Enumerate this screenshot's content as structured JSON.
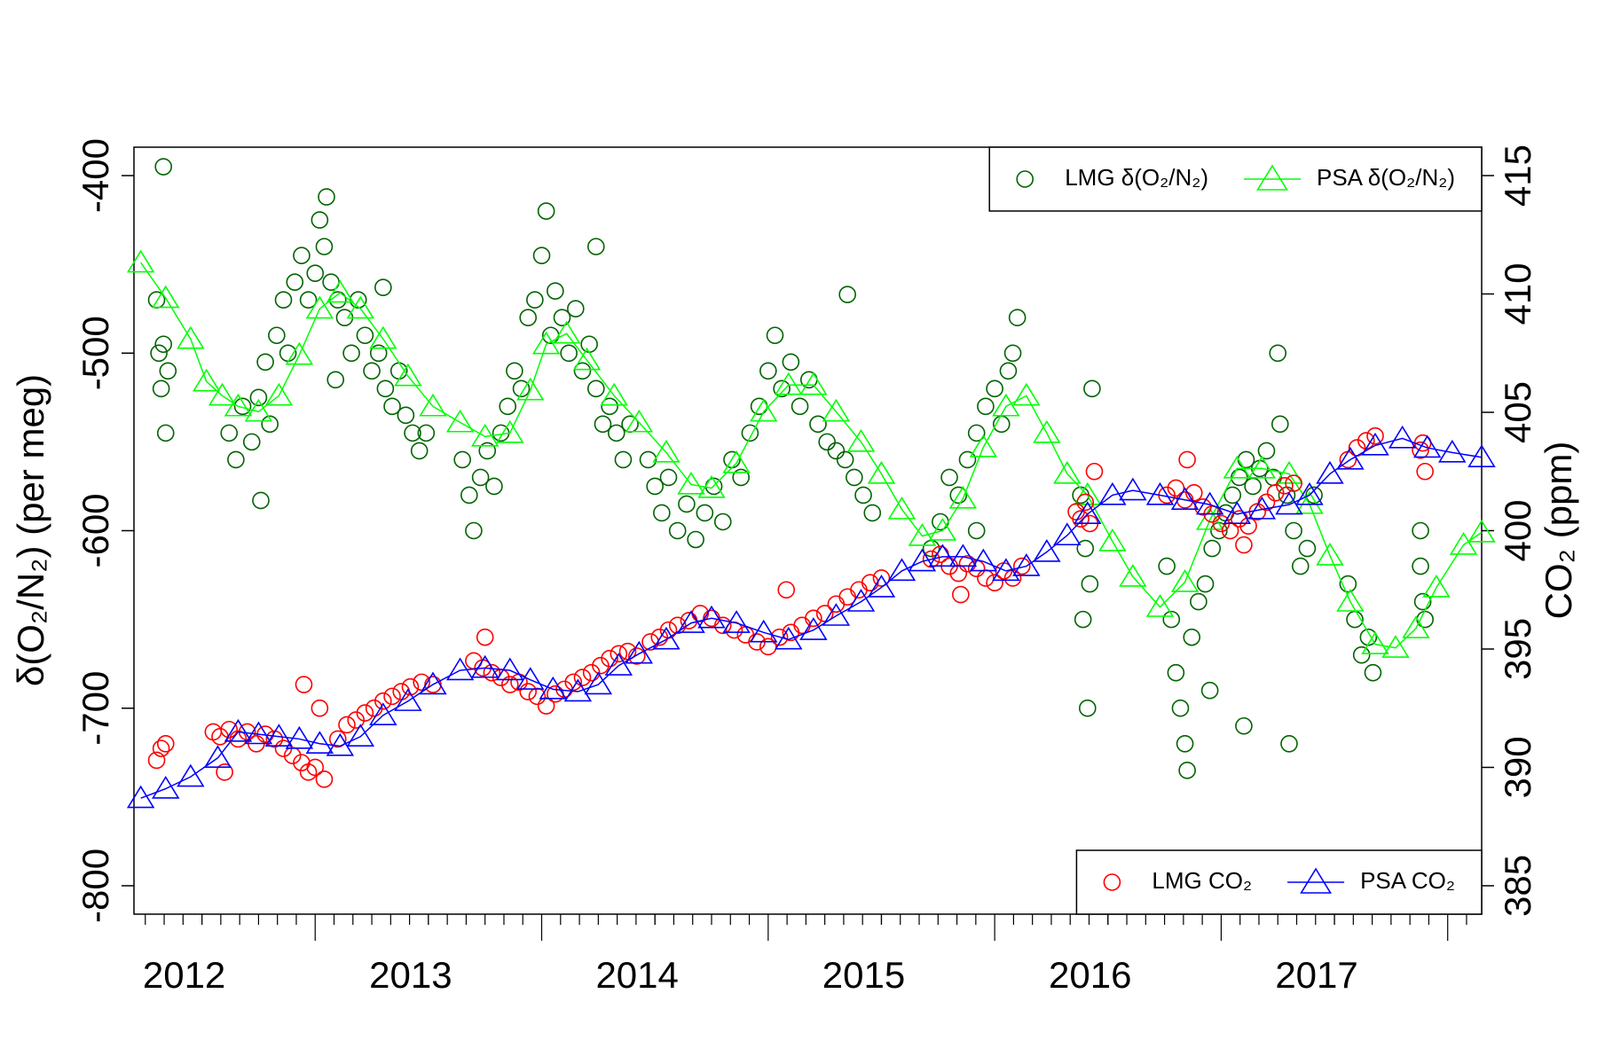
{
  "chart_data": {
    "type": "scatter",
    "y_label": "δ(O₂/N₂) (per meg)",
    "y2_label": "CO₂ (ppm)",
    "xlim": [
      2012.2,
      2018.15
    ],
    "xticks": [
      {
        "value": 2012.5,
        "label": "2012"
      },
      {
        "value": 2013.5,
        "label": "2013"
      },
      {
        "value": 2014.5,
        "label": "2014"
      },
      {
        "value": 2015.5,
        "label": "2015"
      },
      {
        "value": 2016.5,
        "label": "2016"
      },
      {
        "value": 2017.5,
        "label": "2017"
      }
    ],
    "ylim": [
      -816,
      -384
    ],
    "yticks": [
      -800,
      -700,
      -600,
      -500,
      -400
    ],
    "y2lim": [
      383.8,
      416.2
    ],
    "y2ticks": [
      385,
      390,
      395,
      400,
      405,
      410,
      415
    ],
    "series": [
      {
        "name": "LMG δ(O₂/N₂)",
        "color": "#006400",
        "marker": "circle",
        "line": false,
        "legend": "topright",
        "x": [
          2012.3,
          2012.31,
          2012.32,
          2012.33,
          2012.34,
          2012.35,
          2012.33,
          2012.62,
          2012.65,
          2012.68,
          2012.72,
          2012.75,
          2012.78,
          2012.8,
          2012.76,
          2012.83,
          2012.86,
          2012.88,
          2012.91,
          2012.94,
          2012.97,
          2013.0,
          2013.02,
          2013.04,
          2013.05,
          2013.07,
          2013.1,
          2013.09,
          2013.13,
          2013.16,
          2013.19,
          2013.22,
          2013.25,
          2013.28,
          2013.31,
          2013.34,
          2013.37,
          2013.4,
          2013.43,
          2013.46,
          2013.49,
          2013.3,
          2013.65,
          2013.68,
          2013.7,
          2013.73,
          2013.76,
          2013.79,
          2013.82,
          2013.85,
          2013.88,
          2013.91,
          2013.94,
          2013.97,
          2014.0,
          2014.02,
          2014.04,
          2014.06,
          2014.09,
          2014.12,
          2014.15,
          2014.18,
          2014.21,
          2014.24,
          2014.27,
          2014.3,
          2014.33,
          2014.36,
          2014.39,
          2014.24,
          2014.47,
          2014.5,
          2014.53,
          2014.56,
          2014.6,
          2014.64,
          2014.68,
          2014.72,
          2014.76,
          2014.8,
          2014.84,
          2014.88,
          2014.92,
          2014.96,
          2015.0,
          2015.03,
          2015.06,
          2015.1,
          2015.14,
          2015.18,
          2015.22,
          2015.26,
          2015.3,
          2015.34,
          2015.38,
          2015.42,
          2015.46,
          2015.35,
          2015.72,
          2015.76,
          2015.8,
          2015.84,
          2015.88,
          2015.92,
          2015.96,
          2016.0,
          2016.03,
          2016.06,
          2016.08,
          2016.1,
          2015.92,
          2016.38,
          2016.4,
          2016.42,
          2016.39,
          2016.41,
          2016.43,
          2016.76,
          2016.78,
          2016.8,
          2016.82,
          2016.84,
          2016.87,
          2016.9,
          2016.93,
          2016.96,
          2016.99,
          2017.02,
          2017.05,
          2017.08,
          2017.11,
          2017.14,
          2017.17,
          2017.2,
          2017.23,
          2017.26,
          2017.29,
          2017.32,
          2017.35,
          2017.38,
          2017.41,
          2016.85,
          2016.95,
          2017.25,
          2017.3,
          2017.1,
          2017.56,
          2017.59,
          2017.62,
          2017.65,
          2017.67,
          2017.88,
          2017.89,
          2017.9,
          2017.88
        ],
        "values": [
          -470,
          -500,
          -520,
          -495,
          -545,
          -510,
          -395,
          -545,
          -560,
          -530,
          -550,
          -525,
          -505,
          -540,
          -583,
          -490,
          -470,
          -500,
          -460,
          -445,
          -470,
          -455,
          -425,
          -440,
          -412,
          -460,
          -470,
          -515,
          -480,
          -500,
          -470,
          -490,
          -510,
          -500,
          -520,
          -530,
          -510,
          -535,
          -545,
          -555,
          -545,
          -463,
          -560,
          -580,
          -600,
          -570,
          -555,
          -575,
          -545,
          -530,
          -510,
          -520,
          -480,
          -470,
          -445,
          -420,
          -490,
          -465,
          -480,
          -500,
          -475,
          -510,
          -495,
          -520,
          -540,
          -530,
          -545,
          -560,
          -540,
          -440,
          -560,
          -575,
          -590,
          -570,
          -600,
          -585,
          -605,
          -590,
          -575,
          -595,
          -560,
          -570,
          -545,
          -530,
          -510,
          -490,
          -520,
          -505,
          -530,
          -515,
          -540,
          -550,
          -555,
          -560,
          -570,
          -580,
          -590,
          -467,
          -610,
          -595,
          -570,
          -580,
          -560,
          -545,
          -530,
          -520,
          -540,
          -510,
          -500,
          -480,
          -600,
          -580,
          -610,
          -630,
          -650,
          -700,
          -520,
          -620,
          -650,
          -680,
          -700,
          -720,
          -660,
          -640,
          -630,
          -610,
          -600,
          -590,
          -580,
          -570,
          -560,
          -575,
          -565,
          -555,
          -570,
          -540,
          -580,
          -600,
          -620,
          -610,
          -580,
          -735,
          -690,
          -500,
          -720,
          -710,
          -630,
          -650,
          -670,
          -660,
          -680,
          -620,
          -640,
          -650,
          -600
        ]
      },
      {
        "name": "PSA δ(O₂/N₂)",
        "color": "#00ff00",
        "marker": "triangle",
        "line": true,
        "legend": "topright",
        "x": [
          2012.23,
          2012.34,
          2012.45,
          2012.52,
          2012.59,
          2012.66,
          2012.75,
          2012.84,
          2012.93,
          2013.02,
          2013.11,
          2013.2,
          2013.3,
          2013.41,
          2013.52,
          2013.64,
          2013.75,
          2013.86,
          2013.95,
          2014.02,
          2014.11,
          2014.2,
          2014.32,
          2014.43,
          2014.55,
          2014.66,
          2014.75,
          2014.86,
          2014.98,
          2015.09,
          2015.2,
          2015.3,
          2015.41,
          2015.5,
          2015.59,
          2015.68,
          2015.77,
          2015.86,
          2015.95,
          2016.05,
          2016.14,
          2016.23,
          2016.32,
          2016.41,
          2016.52,
          2016.61,
          2016.73,
          2016.84,
          2016.95,
          2017.07,
          2017.18,
          2017.3,
          2017.39,
          2017.48,
          2017.57,
          2017.68,
          2017.77,
          2017.86,
          2017.95,
          2018.07,
          2018.15
        ],
        "values": [
          -449,
          -469,
          -492,
          -516,
          -524,
          -530,
          -533,
          -524,
          -501,
          -475,
          -466,
          -475,
          -492,
          -513,
          -530,
          -539,
          -547,
          -545,
          -521,
          -495,
          -489,
          -504,
          -524,
          -539,
          -556,
          -574,
          -576,
          -562,
          -533,
          -518,
          -518,
          -533,
          -550,
          -568,
          -588,
          -603,
          -600,
          -582,
          -553,
          -530,
          -524,
          -545,
          -568,
          -580,
          -606,
          -626,
          -643,
          -629,
          -594,
          -565,
          -565,
          -568,
          -585,
          -614,
          -640,
          -664,
          -666,
          -655,
          -632,
          -608,
          -601
        ]
      },
      {
        "name": "LMG CO₂",
        "color": "#ff0000",
        "marker": "circle",
        "line": false,
        "legend": "bottomright",
        "axis": "y2",
        "x": [
          2012.3,
          2012.32,
          2012.34,
          2012.55,
          2012.58,
          2012.62,
          2012.66,
          2012.7,
          2012.74,
          2012.78,
          2012.82,
          2012.86,
          2012.9,
          2012.94,
          2012.97,
          2013.0,
          2012.95,
          2013.02,
          2013.04,
          2012.6,
          2013.1,
          2013.14,
          2013.18,
          2013.22,
          2013.26,
          2013.3,
          2013.34,
          2013.38,
          2013.42,
          2013.47,
          2013.52,
          2013.7,
          2013.74,
          2013.78,
          2013.82,
          2013.86,
          2013.9,
          2013.94,
          2013.98,
          2014.02,
          2014.06,
          2014.1,
          2014.14,
          2014.18,
          2014.22,
          2014.26,
          2014.3,
          2014.34,
          2014.38,
          2014.42,
          2013.75,
          2014.48,
          2014.52,
          2014.56,
          2014.6,
          2014.65,
          2014.7,
          2014.75,
          2014.8,
          2014.85,
          2014.9,
          2014.95,
          2015.0,
          2015.05,
          2015.1,
          2015.15,
          2015.2,
          2015.25,
          2015.3,
          2015.35,
          2015.4,
          2015.45,
          2015.5,
          2015.08,
          2015.72,
          2015.76,
          2015.8,
          2015.84,
          2015.88,
          2015.92,
          2015.96,
          2016.0,
          2016.04,
          2016.08,
          2016.12,
          2015.85,
          2016.36,
          2016.38,
          2016.4,
          2016.42,
          2016.44,
          2016.76,
          2016.8,
          2016.84,
          2016.88,
          2016.92,
          2016.96,
          2017.0,
          2017.04,
          2017.08,
          2017.12,
          2017.16,
          2017.2,
          2017.24,
          2017.28,
          2017.32,
          2016.85,
          2017.1,
          2017.56,
          2017.6,
          2017.64,
          2017.68,
          2017.88,
          2017.89,
          2017.9
        ],
        "values": [
          390.3,
          390.8,
          391.0,
          391.5,
          391.3,
          391.6,
          391.2,
          391.5,
          391.0,
          391.4,
          391.2,
          390.8,
          390.5,
          390.2,
          389.8,
          390.0,
          393.5,
          392.5,
          389.5,
          389.8,
          391.2,
          391.8,
          392.0,
          392.3,
          392.5,
          392.8,
          393.0,
          393.2,
          393.4,
          393.6,
          393.5,
          394.5,
          394.2,
          394.0,
          393.8,
          393.5,
          393.6,
          393.2,
          393.0,
          392.6,
          393.1,
          393.3,
          393.6,
          393.8,
          394.0,
          394.3,
          394.6,
          394.8,
          394.9,
          394.7,
          395.5,
          395.3,
          395.5,
          395.8,
          396.0,
          396.2,
          396.5,
          396.3,
          396.0,
          395.8,
          395.6,
          395.3,
          395.1,
          395.5,
          395.7,
          396.0,
          396.3,
          396.5,
          396.9,
          397.2,
          397.5,
          397.8,
          398.0,
          397.5,
          398.8,
          399.0,
          398.5,
          398.2,
          398.6,
          398.4,
          398.0,
          397.8,
          398.3,
          398.0,
          398.5,
          397.3,
          400.8,
          400.5,
          401.2,
          400.3,
          402.5,
          401.5,
          401.8,
          401.3,
          401.6,
          401.0,
          400.7,
          400.3,
          400.0,
          400.5,
          400.2,
          400.8,
          401.2,
          401.6,
          401.9,
          402.0,
          403.0,
          399.4,
          403.0,
          403.5,
          403.8,
          404.0,
          403.4,
          403.7,
          402.5
        ]
      },
      {
        "name": "PSA CO₂",
        "color": "#0000ff",
        "marker": "triangle",
        "line": true,
        "legend": "bottomright",
        "axis": "y2",
        "x": [
          2012.23,
          2012.34,
          2012.45,
          2012.57,
          2012.66,
          2012.75,
          2012.84,
          2012.93,
          2013.02,
          2013.11,
          2013.2,
          2013.3,
          2013.41,
          2013.52,
          2013.64,
          2013.75,
          2013.86,
          2013.95,
          2014.05,
          2014.16,
          2014.25,
          2014.34,
          2014.43,
          2014.55,
          2014.66,
          2014.75,
          2014.86,
          2014.98,
          2015.09,
          2015.2,
          2015.3,
          2015.41,
          2015.5,
          2015.59,
          2015.68,
          2015.77,
          2015.86,
          2015.95,
          2016.05,
          2016.14,
          2016.23,
          2016.32,
          2016.41,
          2016.52,
          2016.61,
          2016.73,
          2016.84,
          2016.95,
          2017.07,
          2017.18,
          2017.3,
          2017.39,
          2017.48,
          2017.57,
          2017.68,
          2017.8,
          2017.91,
          2018.02,
          2018.15
        ],
        "values": [
          388.7,
          389.1,
          389.6,
          390.4,
          391.5,
          391.4,
          391.3,
          391.2,
          391.0,
          390.9,
          391.3,
          392.2,
          392.8,
          393.5,
          394.1,
          394.2,
          394.1,
          393.7,
          393.3,
          393.2,
          393.5,
          394.3,
          394.8,
          395.4,
          396.1,
          396.3,
          396.1,
          395.7,
          395.4,
          395.8,
          396.4,
          397.0,
          397.6,
          398.3,
          398.7,
          398.9,
          398.9,
          398.7,
          398.3,
          398.5,
          399.1,
          399.8,
          400.7,
          401.5,
          401.7,
          401.5,
          401.3,
          401.1,
          400.7,
          400.9,
          401.1,
          401.5,
          402.4,
          403.0,
          403.6,
          403.9,
          403.5,
          403.3,
          403.1
        ]
      }
    ]
  }
}
